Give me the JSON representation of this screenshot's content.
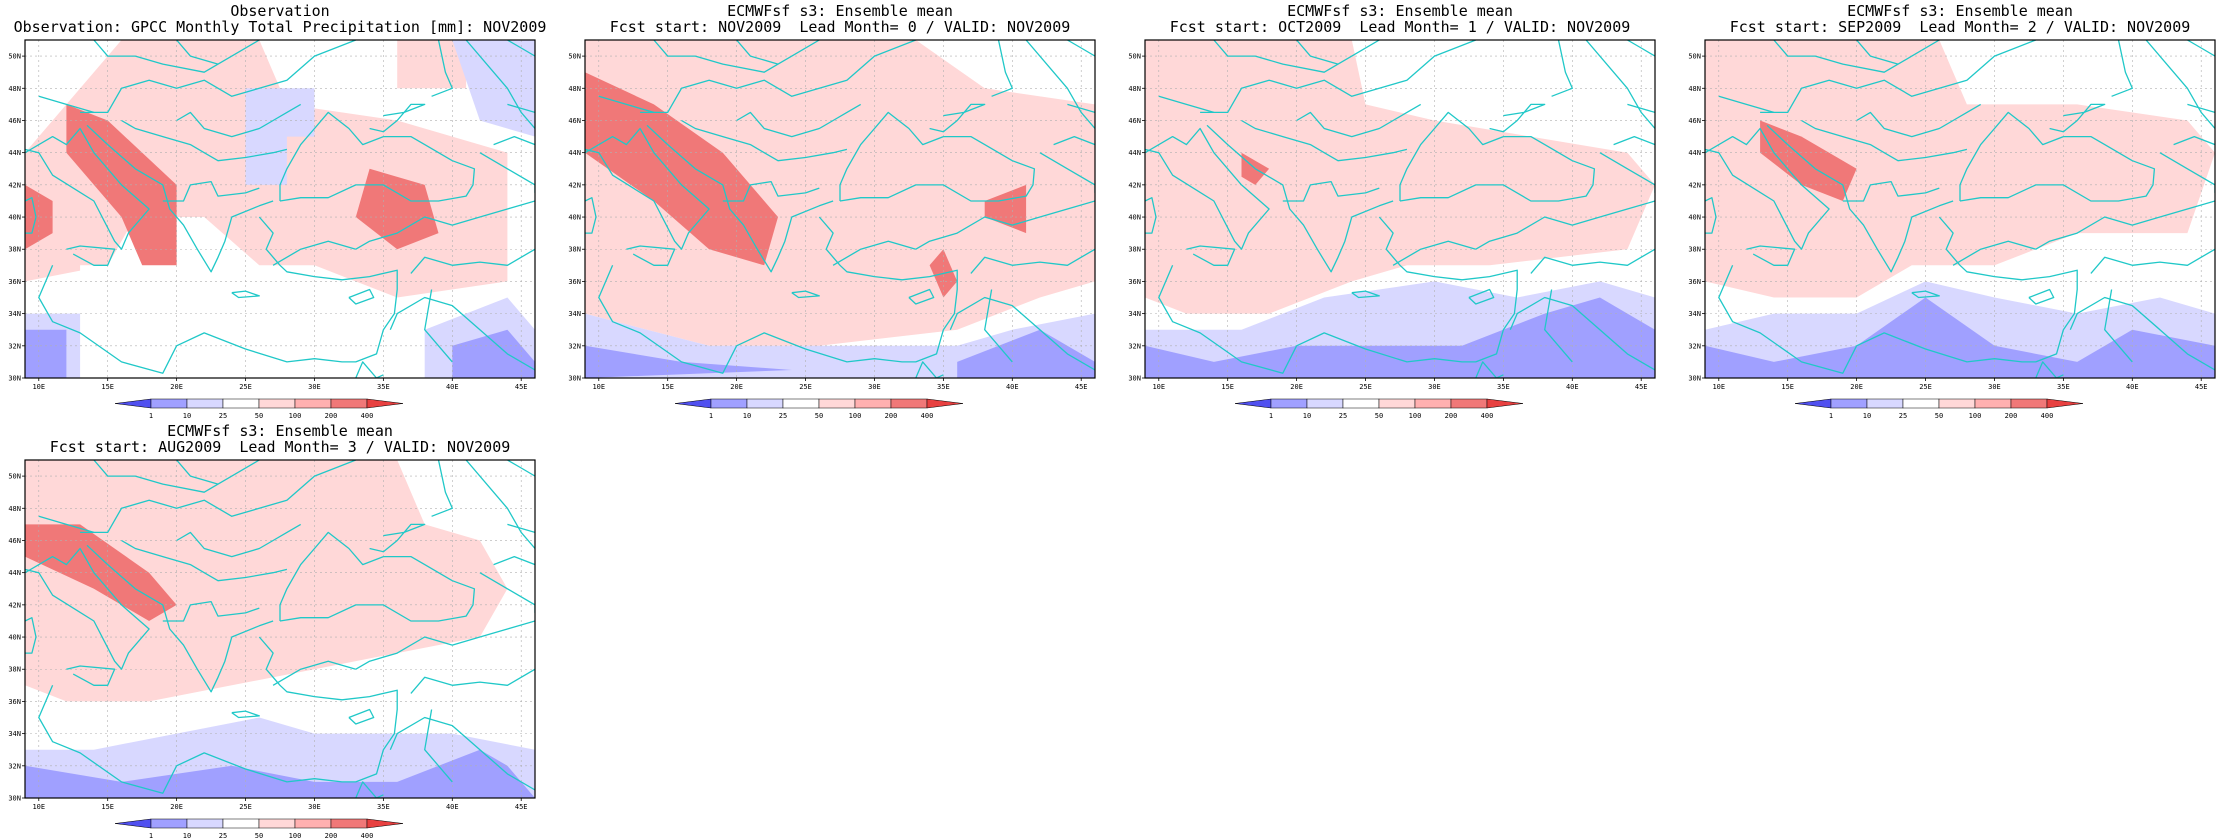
{
  "panels": [
    {
      "line1": "Observation",
      "line2": "Observation: GPCC Monthly Total Precipitation [mm]: NOV2009",
      "variant": 0
    },
    {
      "line1": "ECMWFsf s3: Ensemble mean",
      "line2": "Fcst start: NOV2009  Lead Month= 0 / VALID: NOV2009",
      "variant": 1
    },
    {
      "line1": "ECMWFsf s3: Ensemble mean",
      "line2": "Fcst start: OCT2009  Lead Month= 1 / VALID: NOV2009",
      "variant": 2
    },
    {
      "line1": "ECMWFsf s3: Ensemble mean",
      "line2": "Fcst start: SEP2009  Lead Month= 2 / VALID: NOV2009",
      "variant": 3
    },
    {
      "line1": "ECMWFsf s3: Ensemble mean",
      "line2": "Fcst start: AUG2009  Lead Month= 3 / VALID: NOV2009",
      "variant": 4
    }
  ],
  "axes": {
    "lon_labels": [
      "10E",
      "15E",
      "20E",
      "25E",
      "30E",
      "35E",
      "40E",
      "45E"
    ],
    "lat_labels": [
      "30N",
      "32N",
      "34N",
      "36N",
      "38N",
      "40N",
      "42N",
      "44N",
      "46N",
      "48N",
      "50N"
    ]
  },
  "colorbar": {
    "labels": [
      "1",
      "10",
      "25",
      "50",
      "100",
      "200",
      "400"
    ],
    "colors": [
      "#5050f0",
      "#a0a0ff",
      "#d8d8ff",
      "#ffffff",
      "#ffd8d8",
      "#ffb0b0",
      "#f07878",
      "#e84040"
    ]
  },
  "colors": {
    "coast": "#20c8c8",
    "grid": "#b0b0b0",
    "frame": "#000000"
  }
}
